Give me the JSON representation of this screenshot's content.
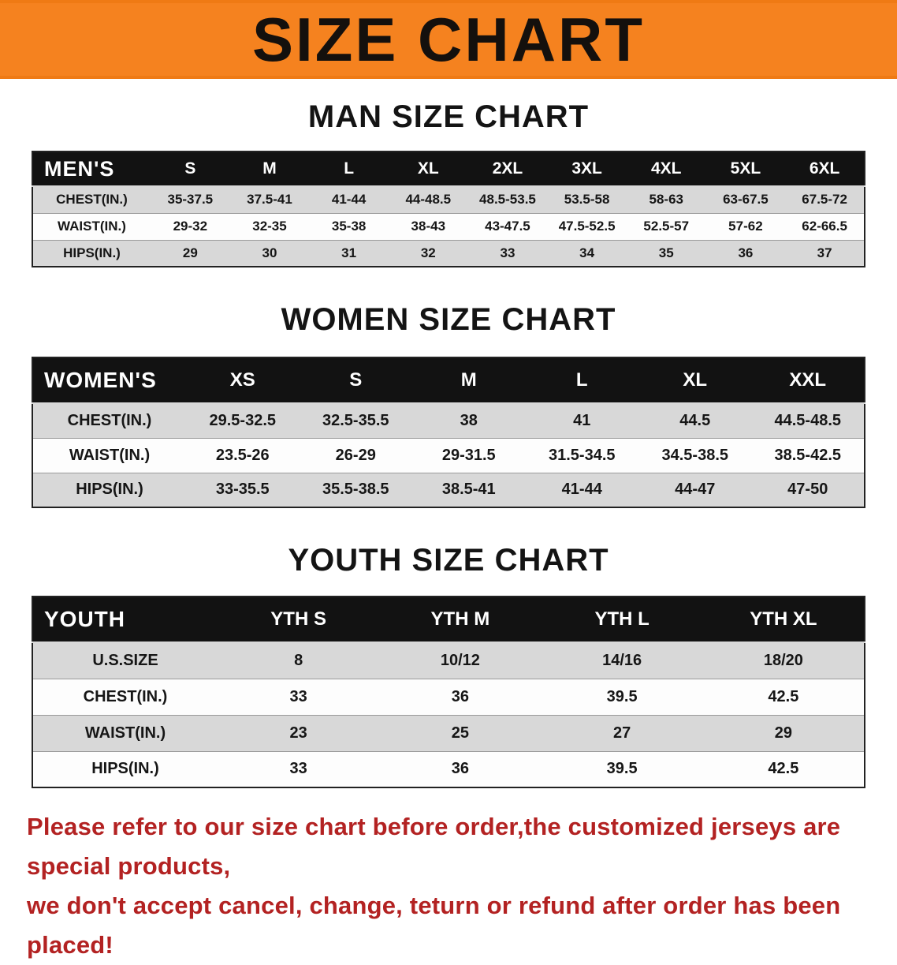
{
  "banner": {
    "title": "SIZE CHART"
  },
  "sections": [
    {
      "id": "men",
      "heading": "MAN SIZE CHART",
      "table": {
        "label": "MEN'S",
        "columns": [
          "S",
          "M",
          "L",
          "XL",
          "2XL",
          "3XL",
          "4XL",
          "5XL",
          "6XL"
        ],
        "rows": [
          {
            "label": "CHEST(IN.)",
            "values": [
              "35-37.5",
              "37.5-41",
              "41-44",
              "44-48.5",
              "48.5-53.5",
              "53.5-58",
              "58-63",
              "63-67.5",
              "67.5-72"
            ]
          },
          {
            "label": "WAIST(IN.)",
            "values": [
              "29-32",
              "32-35",
              "35-38",
              "38-43",
              "43-47.5",
              "47.5-52.5",
              "52.5-57",
              "57-62",
              "62-66.5"
            ]
          },
          {
            "label": "HIPS(IN.)",
            "values": [
              "29",
              "30",
              "31",
              "32",
              "33",
              "34",
              "35",
              "36",
              "37"
            ]
          }
        ]
      }
    },
    {
      "id": "women",
      "heading": "WOMEN SIZE CHART",
      "table": {
        "label": "WOMEN'S",
        "columns": [
          "XS",
          "S",
          "M",
          "L",
          "XL",
          "XXL"
        ],
        "rows": [
          {
            "label": "CHEST(IN.)",
            "values": [
              "29.5-32.5",
              "32.5-35.5",
              "38",
              "41",
              "44.5",
              "44.5-48.5"
            ]
          },
          {
            "label": "WAIST(IN.)",
            "values": [
              "23.5-26",
              "26-29",
              "29-31.5",
              "31.5-34.5",
              "34.5-38.5",
              "38.5-42.5"
            ]
          },
          {
            "label": "HIPS(IN.)",
            "values": [
              "33-35.5",
              "35.5-38.5",
              "38.5-41",
              "41-44",
              "44-47",
              "47-50"
            ]
          }
        ]
      }
    },
    {
      "id": "youth",
      "heading": "YOUTH SIZE CHART",
      "table": {
        "label": "YOUTH",
        "columns": [
          "YTH S",
          "YTH M",
          "YTH L",
          "YTH XL"
        ],
        "rows": [
          {
            "label": "U.S.SIZE",
            "values": [
              "8",
              "10/12",
              "14/16",
              "18/20"
            ]
          },
          {
            "label": "CHEST(IN.)",
            "values": [
              "33",
              "36",
              "39.5",
              "42.5"
            ]
          },
          {
            "label": "WAIST(IN.)",
            "values": [
              "23",
              "25",
              "27",
              "29"
            ]
          },
          {
            "label": "HIPS(IN.)",
            "values": [
              "33",
              "36",
              "39.5",
              "42.5"
            ]
          }
        ]
      }
    }
  ],
  "footer": {
    "line1": "Please refer to our size chart before order,the customized jerseys are special products,",
    "line2": "we don't accept cancel, change, teturn or refund after order has been placed!"
  },
  "colors": {
    "banner_bg": "#f5821f",
    "table_header_bg": "#121212",
    "row_alt_bg": "#d8d8d8",
    "disclaimer_text": "#b32222"
  }
}
